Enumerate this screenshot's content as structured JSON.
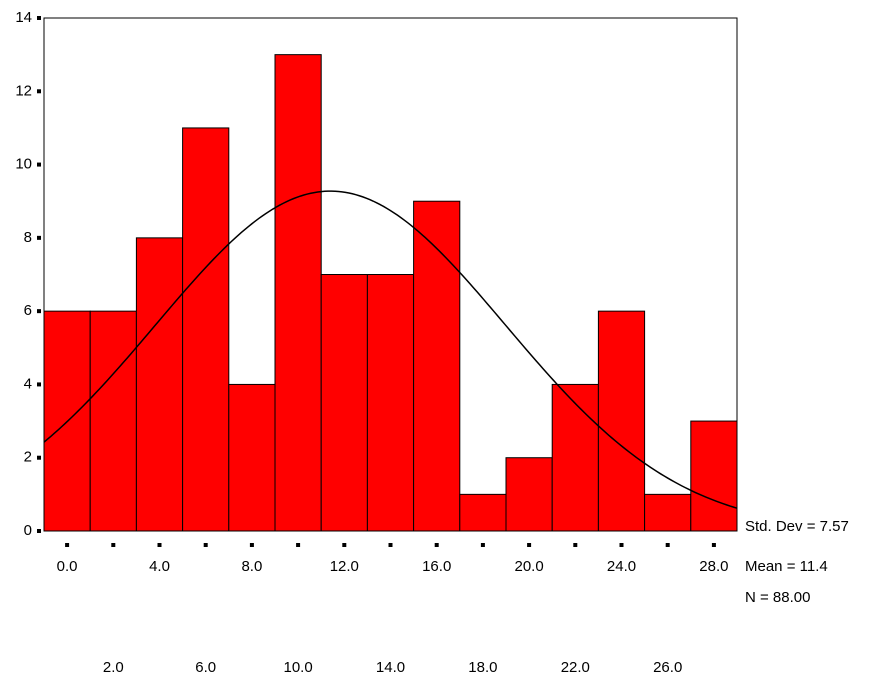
{
  "chart_data": {
    "type": "histogram",
    "bins": [
      -1,
      1,
      3,
      5,
      7,
      9,
      11,
      13,
      15,
      17,
      19,
      21,
      23,
      25,
      27,
      29
    ],
    "values": [
      6,
      6,
      8,
      11,
      4,
      13,
      7,
      7,
      9,
      1,
      2,
      4,
      6,
      1,
      3
    ],
    "color": "#ff0000",
    "xlim": [
      -1,
      29
    ],
    "xticks": [
      {
        "value": 0,
        "label": "0.0"
      },
      {
        "value": 2,
        "label": "2.0"
      },
      {
        "value": 4,
        "label": "4.0"
      },
      {
        "value": 6,
        "label": "6.0"
      },
      {
        "value": 8,
        "label": "8.0"
      },
      {
        "value": 10,
        "label": "10.0"
      },
      {
        "value": 12,
        "label": "12.0"
      },
      {
        "value": 14,
        "label": "14.0"
      },
      {
        "value": 16,
        "label": "16.0"
      },
      {
        "value": 18,
        "label": "18.0"
      },
      {
        "value": 20,
        "label": "20.0"
      },
      {
        "value": 22,
        "label": "22.0"
      },
      {
        "value": 24,
        "label": "24.0"
      },
      {
        "value": 26,
        "label": "26.0"
      },
      {
        "value": 28,
        "label": "28.0"
      }
    ],
    "ylim": [
      0,
      14
    ],
    "yticks": [
      0,
      2,
      4,
      6,
      8,
      10,
      12,
      14
    ],
    "stats": [
      {
        "value": 7.57,
        "label": "Std. Dev = 7.57"
      },
      {
        "value": 11.4,
        "label": "Mean = 11.4"
      },
      {
        "value": 88,
        "label": "N = 88.00"
      }
    ]
  }
}
